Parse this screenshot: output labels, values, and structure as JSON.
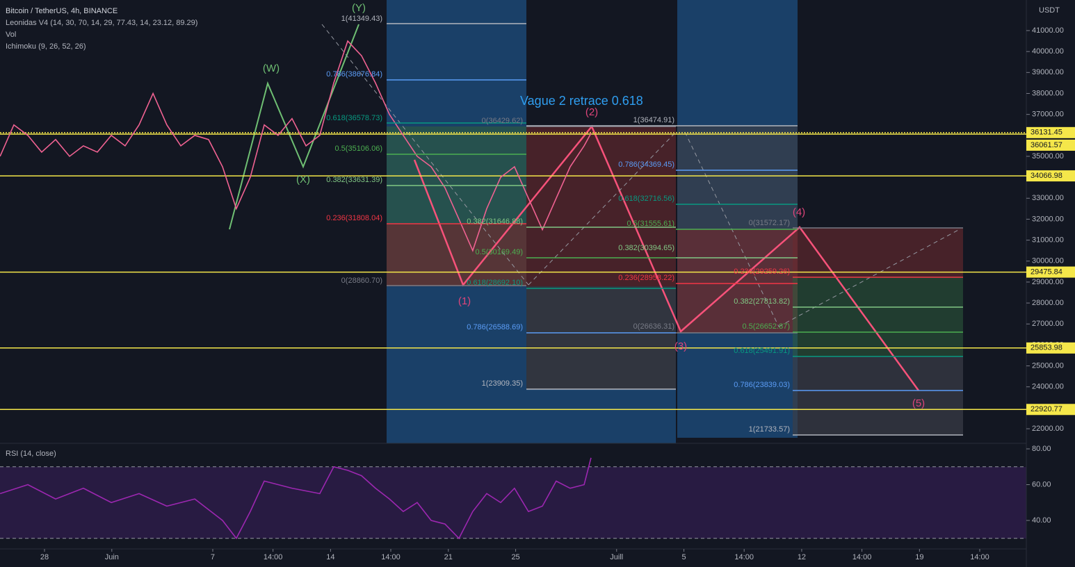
{
  "chart_data": [
    {
      "type": "line",
      "title": "Bitcoin / TetherUS, 4h, BINANCE",
      "indicators": [
        "Leonidas V4 (14, 30, 70, 14, 29, 77.43, 14, 23.12, 89.29)",
        "Vol",
        "Ichimoku (9, 26, 52, 26)"
      ],
      "currency": "USDT",
      "x": [
        -2.64,
        -1.82,
        -0.99,
        -0.17,
        0.66,
        1.49,
        2.31,
        3.14,
        3.97,
        4.79,
        5.62,
        6.45,
        7.27,
        8.1,
        8.93,
        9.75,
        10.58,
        11.4,
        12.23,
        13.06,
        13.88,
        14.71,
        15.54,
        16.36,
        17.19,
        18.02,
        18.84,
        19.67,
        20.5,
        21.32,
        22.15,
        22.98,
        23.8,
        24.63,
        25.45,
        26.28,
        27.11,
        27.93,
        28.76,
        29.59,
        30.41,
        31.24,
        32.07,
        32.48
      ],
      "values": [
        35000,
        36500,
        36000,
        35200,
        35800,
        35000,
        35500,
        35200,
        36000,
        35500,
        36500,
        38000,
        36500,
        35500,
        36000,
        35800,
        34500,
        32500,
        34000,
        36500,
        36000,
        36800,
        35500,
        36000,
        38500,
        40500,
        39800,
        38500,
        37000,
        36000,
        35000,
        34500,
        33500,
        32000,
        30500,
        32500,
        34000,
        34500,
        33000,
        31500,
        33000,
        34500,
        35500,
        36100
      ],
      "color": "#f06292",
      "xlim": [
        -2.645,
        58.35
      ],
      "ylim": [
        21305,
        42459
      ],
      "yticks": [
        {
          "value": 22000,
          "label": "22000.00"
        },
        {
          "value": 23000,
          "label": "23000.00"
        },
        {
          "value": 24000,
          "label": "24000.00"
        },
        {
          "value": 25000,
          "label": "25000.00"
        },
        {
          "value": 26000,
          "label": "26000.00"
        },
        {
          "value": 27000,
          "label": "27000.00"
        },
        {
          "value": 28000,
          "label": "28000.00"
        },
        {
          "value": 29000,
          "label": "29000.00"
        },
        {
          "value": 30000,
          "label": "30000.00"
        },
        {
          "value": 31000,
          "label": "31000.00"
        },
        {
          "value": 32000,
          "label": "32000.00"
        },
        {
          "value": 33000,
          "label": "33000.00"
        },
        {
          "value": 34000,
          "label": "34000.00"
        },
        {
          "value": 35000,
          "label": "35000.00"
        },
        {
          "value": 36000,
          "label": "36000.00"
        },
        {
          "value": 37000,
          "label": "37000.00"
        },
        {
          "value": 38000,
          "label": "38000.00"
        },
        {
          "value": 39000,
          "label": "39000.00"
        },
        {
          "value": 40000,
          "label": "40000.00"
        },
        {
          "value": 41000,
          "label": "41000.00"
        }
      ],
      "price_lines": [
        36131.45,
        36061.57,
        34066.98,
        29475.84,
        25853.98,
        22920.77
      ],
      "fib_labels": [
        "1(41349.43)",
        "0.786(38676.84)",
        "0.618(36578.73)",
        "0.5(35106.06)",
        "0.382(33631.39)",
        "0.236(31808.04)",
        "0(28860.70)",
        "0(36429.62)",
        "0.382(31646.88)",
        "0.5(30169.49)",
        "0.618(28692.10)",
        "0.786(26588.69)",
        "1(23909.35)",
        "1(36474.91)",
        "0.786(34369.45)",
        "0.618(32716.56)",
        "0.5(31555.61)",
        "0.382(30394.65)",
        "0.236(28958.22)",
        "0(26636.31)",
        "0(31572.17)",
        "0.236(29259.26)",
        "0.382(27813.82)",
        "0.5(26652.87)",
        "0.618(25491.91)",
        "0.786(23839.03)",
        "1(21733.57)"
      ],
      "wave_labels": [
        "(Y)",
        "(W)",
        "(X)",
        "(1)",
        "(2)",
        "(3)",
        "(4)",
        "(5)"
      ],
      "annotation": "Vague 2 retrace 0.618"
    },
    {
      "type": "line",
      "title": "RSI (14, close)",
      "x": [
        -2.64,
        -0.99,
        0.66,
        2.31,
        3.97,
        5.62,
        7.27,
        8.93,
        10.58,
        11.4,
        12.23,
        13.06,
        14.71,
        16.36,
        17.19,
        18.02,
        18.84,
        19.67,
        20.5,
        21.32,
        22.15,
        22.98,
        23.8,
        24.63,
        25.45,
        26.28,
        27.11,
        27.93,
        28.76,
        29.59,
        30.41,
        31.24,
        32.07,
        32.48
      ],
      "values": [
        55,
        60,
        52,
        58,
        50,
        55,
        48,
        52,
        40,
        30,
        45,
        62,
        58,
        55,
        70,
        68,
        65,
        58,
        52,
        45,
        50,
        40,
        38,
        30,
        45,
        55,
        50,
        58,
        45,
        48,
        62,
        58,
        60,
        75
      ],
      "color": "#9c27b0",
      "xlim": [
        -2.645,
        58.35
      ],
      "ylim": [
        24.08,
        82.33
      ],
      "yticks": [
        {
          "value": 40,
          "label": "40.00"
        },
        {
          "value": 60,
          "label": "60.00"
        },
        {
          "value": 80,
          "label": "80.00"
        }
      ],
      "bands": [
        30,
        70
      ],
      "xticks": [
        {
          "value": 0,
          "label": "28"
        },
        {
          "value": 4,
          "label": "Juin"
        },
        {
          "value": 10,
          "label": "7"
        },
        {
          "value": 13.58,
          "label": "14:00"
        },
        {
          "value": 17,
          "label": "14"
        },
        {
          "value": 20.58,
          "label": "14:00"
        },
        {
          "value": 24,
          "label": "21"
        },
        {
          "value": 28,
          "label": "25"
        },
        {
          "value": 34,
          "label": "Juill"
        },
        {
          "value": 38,
          "label": "5"
        },
        {
          "value": 41.58,
          "label": "14:00"
        },
        {
          "value": 45,
          "label": "12"
        },
        {
          "value": 48.58,
          "label": "14:00"
        },
        {
          "value": 52,
          "label": "19"
        },
        {
          "value": 55.58,
          "label": "14:00"
        }
      ]
    }
  ]
}
